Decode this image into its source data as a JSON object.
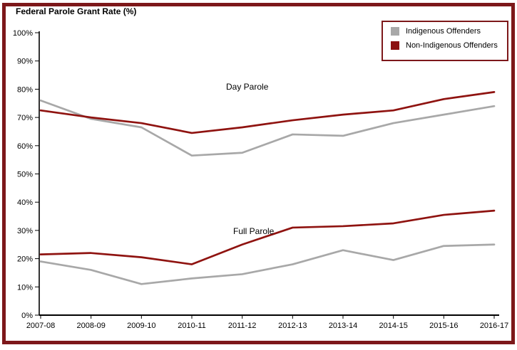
{
  "title": "Federal Parole Grant Rate (%)",
  "frame": {
    "border_color": "#7d181a"
  },
  "legend": {
    "items": [
      {
        "label": "Indigenous Offenders",
        "color": "#a8a8a8"
      },
      {
        "label": "Non-Indigenous Offenders",
        "color": "#8b1111"
      }
    ]
  },
  "annotations": [
    {
      "text": "Day Parole"
    },
    {
      "text": "Full Parole"
    }
  ],
  "chart_data": {
    "type": "line",
    "title": "Federal Parole Grant Rate (%)",
    "x_categories": [
      "2007-08",
      "2008-09",
      "2009-10",
      "2010-11",
      "2011-12",
      "2012-13",
      "2013-14",
      "2014-15",
      "2015-16",
      "2016-17"
    ],
    "ylim": [
      0,
      100
    ],
    "y_ticks": [
      0,
      10,
      20,
      30,
      40,
      50,
      60,
      70,
      80,
      90,
      100
    ],
    "y_tick_suffix": "%",
    "grid": false,
    "legend_position": "top-right",
    "groups": [
      {
        "name": "Day Parole",
        "series": [
          {
            "name": "Indigenous Offenders",
            "color": "#a8a8a8",
            "values": [
              76,
              69.5,
              66.5,
              56.5,
              57.5,
              64,
              63.5,
              68,
              71,
              74
            ]
          },
          {
            "name": "Non-Indigenous Offenders",
            "color": "#8f1310",
            "values": [
              72.5,
              70,
              68,
              64.5,
              66.5,
              69,
              71,
              72.5,
              76.5,
              79
            ]
          }
        ]
      },
      {
        "name": "Full Parole",
        "series": [
          {
            "name": "Indigenous Offenders",
            "color": "#a8a8a8",
            "values": [
              19,
              16,
              11,
              13,
              14.5,
              18,
              23,
              19.5,
              24.5,
              25
            ]
          },
          {
            "name": "Non-Indigenous Offenders",
            "color": "#8f1310",
            "values": [
              21.5,
              22,
              20.5,
              18,
              25,
              31,
              31.5,
              32.5,
              35.5,
              37
            ]
          }
        ]
      }
    ]
  }
}
